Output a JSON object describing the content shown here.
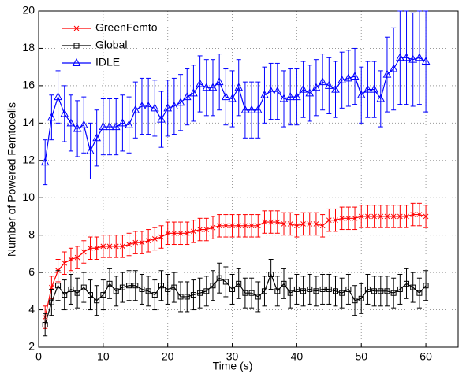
{
  "chart_data": {
    "type": "errorbar-line",
    "xlabel": "Time (s)",
    "ylabel": "Number of Powered Femtocells",
    "x": [
      1,
      2,
      3,
      4,
      5,
      6,
      7,
      8,
      9,
      10,
      11,
      12,
      13,
      14,
      15,
      16,
      17,
      18,
      19,
      20,
      21,
      22,
      23,
      24,
      25,
      26,
      27,
      28,
      29,
      30,
      31,
      32,
      33,
      34,
      35,
      36,
      37,
      38,
      39,
      40,
      41,
      42,
      43,
      44,
      45,
      46,
      47,
      48,
      49,
      50,
      51,
      52,
      53,
      54,
      55,
      56,
      57,
      58,
      59,
      60
    ],
    "xlim": [
      0,
      65
    ],
    "xticks": [
      0,
      10,
      20,
      30,
      40,
      50,
      60
    ],
    "ylim": [
      2,
      20
    ],
    "yticks": [
      2,
      4,
      6,
      8,
      10,
      12,
      14,
      16,
      18,
      20
    ],
    "grid": true,
    "legend": "upper left",
    "series": [
      {
        "name": "GreenFemto",
        "color": "#ff0000",
        "marker": "x",
        "values": [
          3.6,
          5.2,
          6.1,
          6.5,
          6.7,
          6.8,
          7.1,
          7.3,
          7.3,
          7.4,
          7.4,
          7.4,
          7.4,
          7.5,
          7.6,
          7.6,
          7.7,
          7.8,
          7.9,
          8.1,
          8.1,
          8.1,
          8.1,
          8.2,
          8.3,
          8.3,
          8.4,
          8.5,
          8.5,
          8.5,
          8.5,
          8.5,
          8.5,
          8.5,
          8.7,
          8.7,
          8.7,
          8.6,
          8.6,
          8.5,
          8.6,
          8.6,
          8.6,
          8.5,
          8.8,
          8.8,
          8.9,
          8.9,
          8.9,
          9.0,
          9.0,
          9.0,
          9.0,
          9.0,
          9.0,
          9.0,
          9.0,
          9.1,
          9.1,
          9.0
        ],
        "errors": [
          0.6,
          0.6,
          0.6,
          0.6,
          0.6,
          0.6,
          0.6,
          0.6,
          0.6,
          0.6,
          0.6,
          0.6,
          0.6,
          0.6,
          0.6,
          0.6,
          0.6,
          0.6,
          0.6,
          0.6,
          0.6,
          0.6,
          0.6,
          0.6,
          0.6,
          0.6,
          0.6,
          0.6,
          0.6,
          0.6,
          0.6,
          0.6,
          0.6,
          0.6,
          0.6,
          0.6,
          0.6,
          0.6,
          0.6,
          0.6,
          0.6,
          0.6,
          0.6,
          0.6,
          0.6,
          0.6,
          0.6,
          0.6,
          0.6,
          0.6,
          0.6,
          0.6,
          0.6,
          0.6,
          0.6,
          0.6,
          0.6,
          0.6,
          0.6,
          0.6
        ]
      },
      {
        "name": "Global",
        "color": "#000000",
        "marker": "square",
        "values": [
          3.2,
          4.4,
          5.3,
          4.8,
          5.1,
          4.9,
          5.2,
          4.8,
          4.5,
          4.8,
          5.4,
          5.0,
          5.2,
          5.3,
          5.3,
          5.1,
          5.0,
          4.8,
          5.3,
          5.1,
          5.2,
          4.7,
          4.7,
          4.8,
          4.9,
          5.0,
          5.3,
          5.7,
          5.5,
          5.1,
          5.4,
          4.9,
          4.9,
          4.7,
          5.0,
          5.9,
          5.0,
          5.4,
          4.9,
          5.1,
          5.0,
          5.1,
          5.0,
          5.1,
          5.1,
          5.0,
          4.9,
          5.1,
          4.5,
          4.6,
          5.1,
          5.0,
          5.0,
          5.0,
          4.9,
          5.1,
          5.4,
          5.2,
          4.9,
          5.3
        ],
        "errors": [
          0.6,
          0.7,
          0.8,
          0.8,
          0.8,
          0.8,
          0.8,
          0.8,
          0.8,
          0.8,
          0.8,
          0.8,
          0.8,
          0.8,
          0.8,
          0.8,
          0.8,
          0.8,
          0.8,
          0.8,
          0.8,
          0.8,
          0.8,
          0.8,
          0.8,
          0.8,
          0.8,
          0.8,
          0.8,
          0.8,
          0.8,
          0.8,
          0.8,
          0.8,
          0.8,
          0.8,
          0.8,
          0.8,
          0.8,
          0.8,
          0.8,
          0.8,
          0.8,
          0.8,
          0.8,
          0.8,
          0.8,
          0.8,
          0.8,
          0.8,
          0.8,
          0.8,
          0.8,
          0.8,
          0.8,
          0.8,
          0.8,
          0.8,
          0.8,
          0.8
        ]
      },
      {
        "name": "IDLE",
        "color": "#0000ff",
        "marker": "triangle",
        "values": [
          11.9,
          14.3,
          15.4,
          14.5,
          14.0,
          13.7,
          13.9,
          12.5,
          13.2,
          13.8,
          13.8,
          13.8,
          14.0,
          13.9,
          14.7,
          14.9,
          14.9,
          14.8,
          14.2,
          14.8,
          14.9,
          15.1,
          15.4,
          15.6,
          16.1,
          15.9,
          15.9,
          16.2,
          15.4,
          15.3,
          15.9,
          14.7,
          14.7,
          14.7,
          15.5,
          15.7,
          15.7,
          15.3,
          15.4,
          15.4,
          15.8,
          15.6,
          15.9,
          16.2,
          16.0,
          15.8,
          16.3,
          16.4,
          16.5,
          15.5,
          15.8,
          15.8,
          15.3,
          16.6,
          16.9,
          17.5,
          17.5,
          17.4,
          17.5,
          17.3
        ],
        "errors": [
          1.2,
          1.2,
          1.4,
          1.5,
          1.5,
          1.5,
          1.5,
          1.5,
          1.5,
          1.5,
          1.5,
          1.5,
          1.5,
          1.5,
          1.5,
          1.5,
          1.5,
          1.5,
          1.5,
          1.5,
          1.5,
          1.5,
          1.5,
          1.5,
          1.5,
          1.5,
          1.5,
          1.5,
          1.5,
          1.5,
          1.5,
          1.5,
          1.5,
          1.5,
          1.5,
          1.5,
          1.5,
          1.5,
          1.5,
          1.5,
          1.5,
          1.5,
          1.5,
          1.5,
          1.5,
          1.5,
          1.5,
          1.5,
          1.5,
          1.5,
          1.5,
          1.5,
          1.5,
          2.0,
          2.2,
          2.5,
          2.5,
          2.5,
          2.5,
          2.7
        ]
      }
    ]
  }
}
